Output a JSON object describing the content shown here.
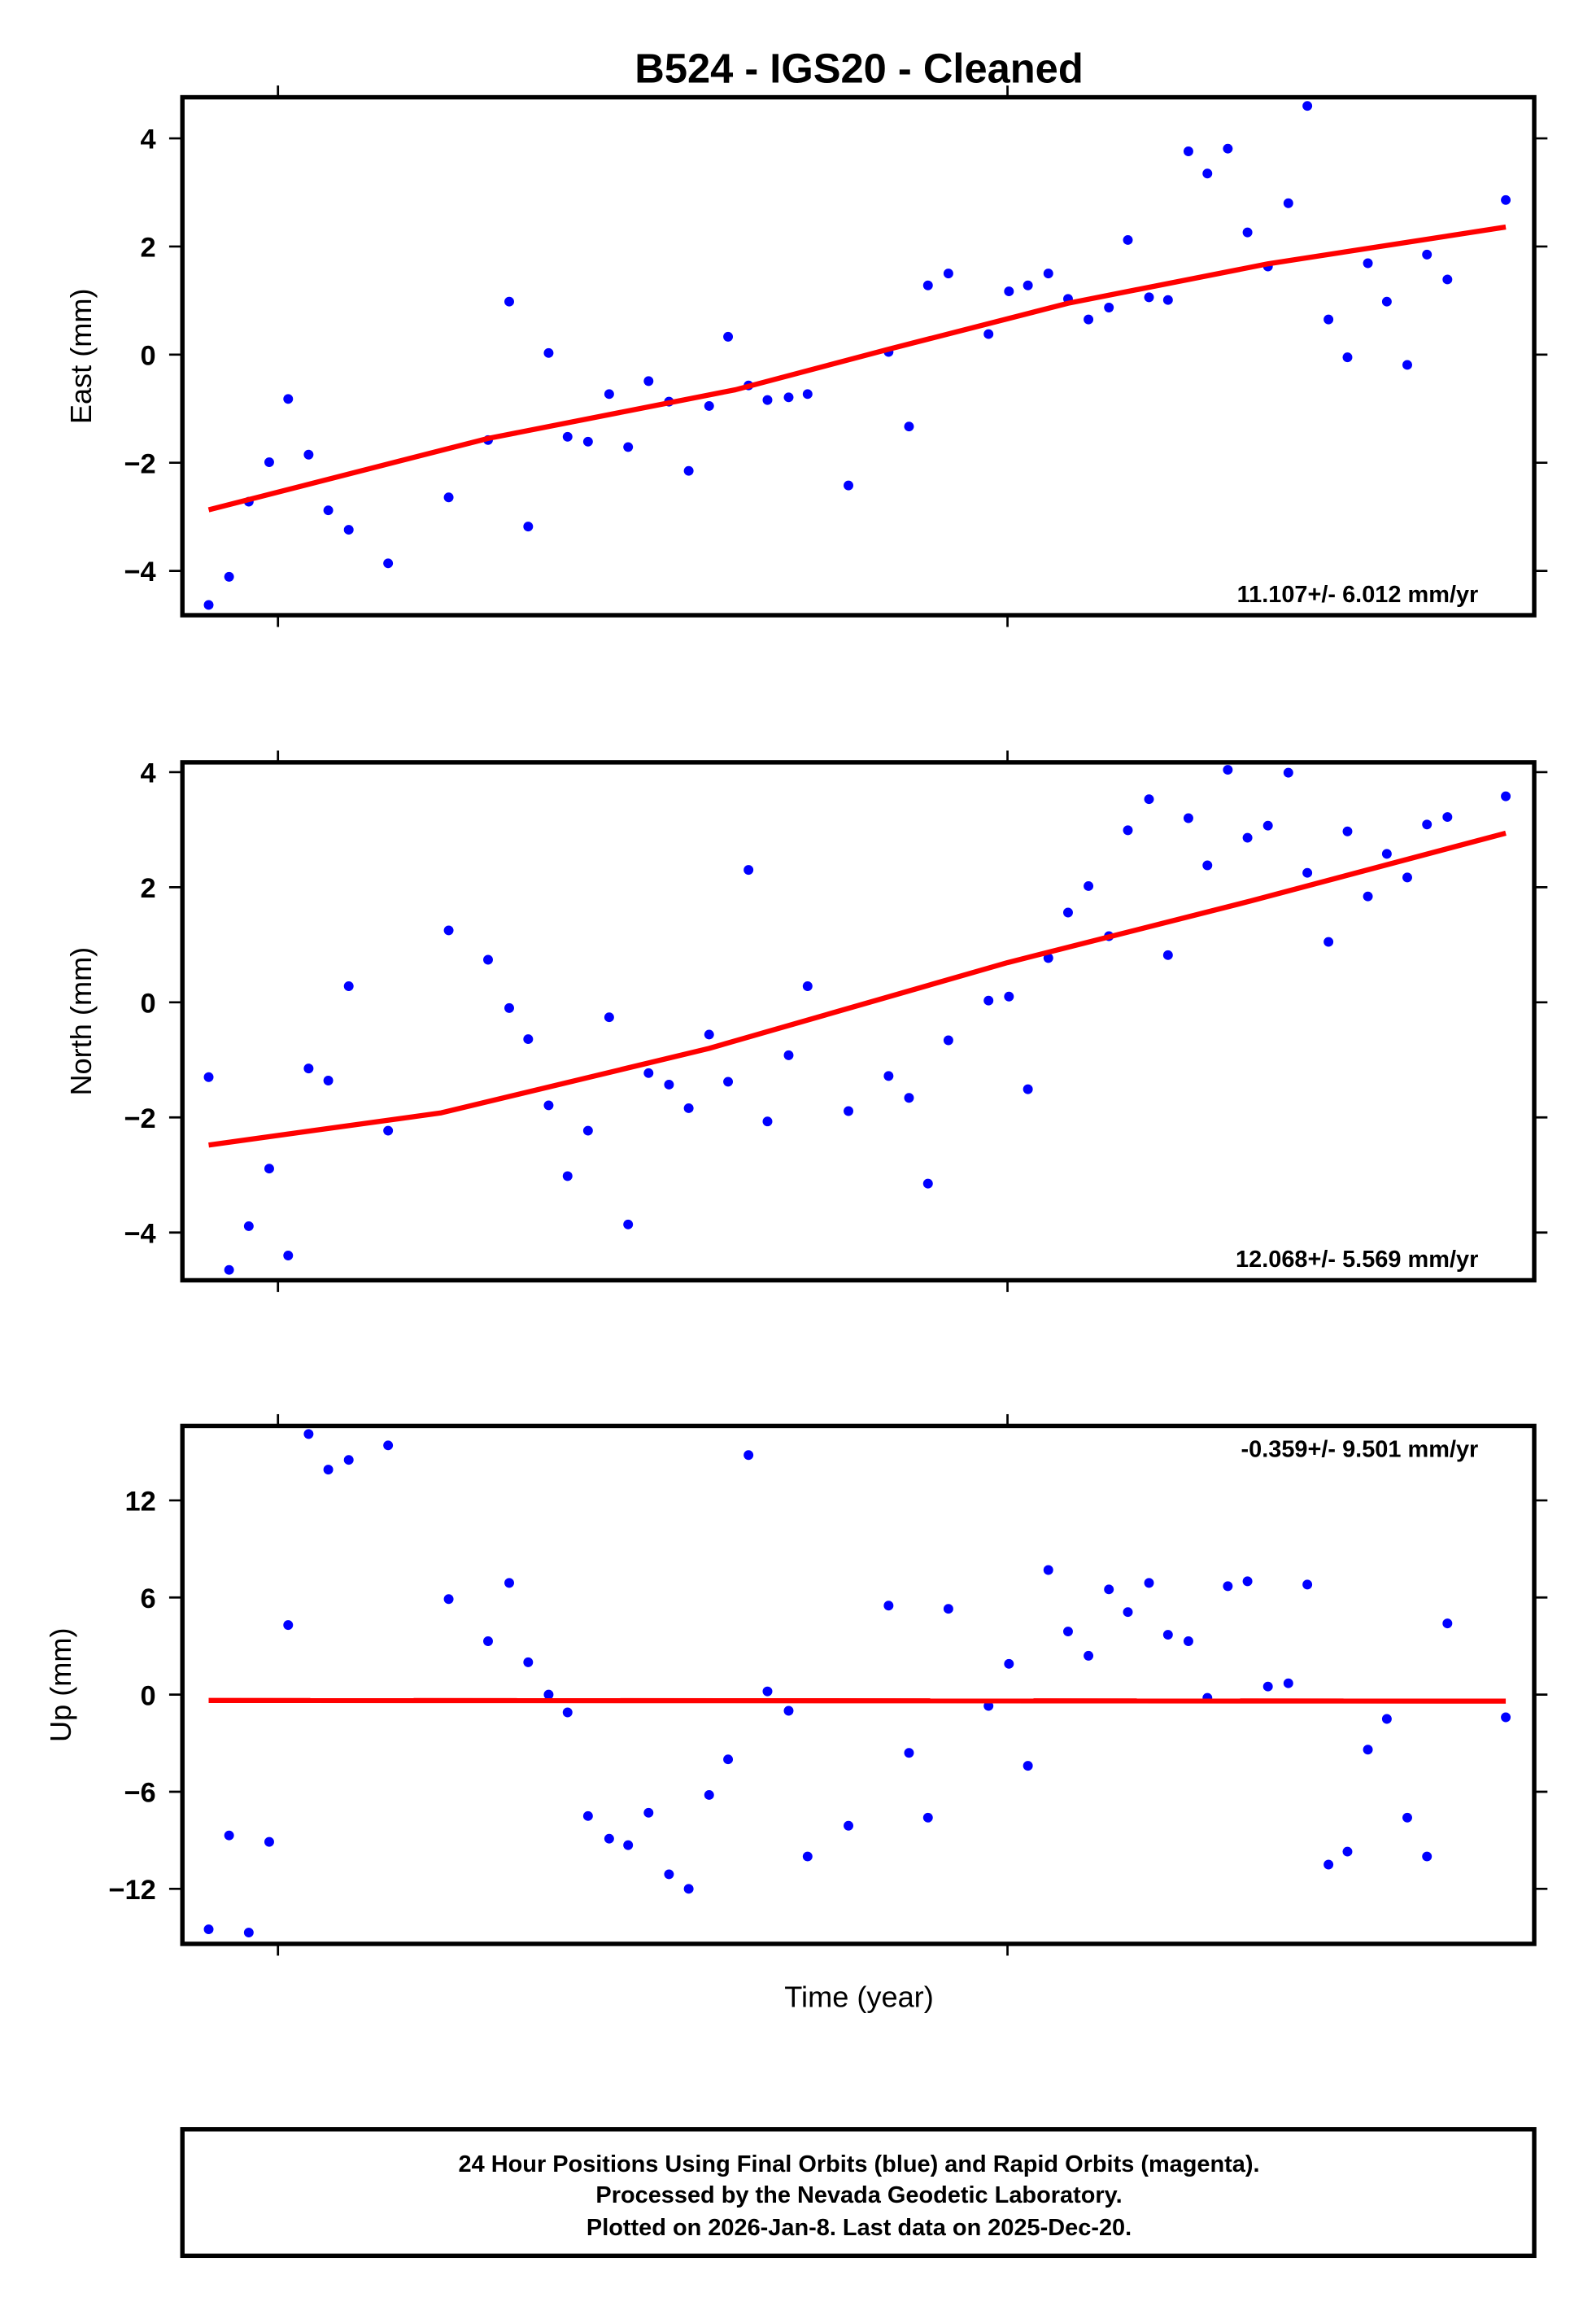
{
  "chart_data": {
    "type": "scatter",
    "title": "B524  - IGS20 - Cleaned",
    "xlabel": "Time (year)",
    "xlim": [
      2023.869,
      2025.722
    ],
    "xticks": [
      2024,
      2025
    ],
    "colors": {
      "points": "#0000ff",
      "trend": "#ff0000"
    },
    "x": [
      2023.905,
      2023.933,
      2023.96,
      2023.988,
      2024.014,
      2024.042,
      2024.069,
      2024.097,
      2024.151,
      2024.234,
      2024.288,
      2024.317,
      2024.343,
      2024.371,
      2024.397,
      2024.425,
      2024.454,
      2024.48,
      2024.508,
      2024.536,
      2024.563,
      2024.591,
      2024.617,
      2024.645,
      2024.671,
      2024.7,
      2024.726,
      2024.782,
      2024.837,
      2024.865,
      2024.891,
      2024.919,
      2024.974,
      2025.002,
      2025.028,
      2025.056,
      2025.083,
      2025.111,
      2025.139,
      2025.165,
      2025.194,
      2025.22,
      2025.248,
      2025.274,
      2025.302,
      2025.329,
      2025.357,
      2025.385,
      2025.411,
      2025.44,
      2025.466,
      2025.494,
      2025.52,
      2025.548,
      2025.575,
      2025.603,
      2025.683
    ],
    "panels": [
      {
        "name": "east",
        "ylabel": "East (mm)",
        "ylim": [
          -4.82,
          4.76
        ],
        "yticks": [
          -4,
          -2,
          0,
          2,
          4
        ],
        "ytick_labels": [
          "−4",
          "−2",
          "0",
          "2",
          "4"
        ],
        "rate_label": "11.107+/- 6.012 mm/yr",
        "rate_position": "bottom-right",
        "values": [
          -4.63,
          -4.11,
          -2.72,
          -1.99,
          -0.82,
          -1.85,
          -2.88,
          -3.24,
          -3.86,
          -2.64,
          -1.58,
          0.98,
          -3.18,
          0.03,
          -1.52,
          -1.61,
          -0.73,
          -1.71,
          -0.49,
          -0.87,
          -2.15,
          -0.95,
          0.33,
          -0.57,
          -0.84,
          -0.79,
          -0.73,
          -2.42,
          0.05,
          -1.33,
          1.28,
          1.5,
          0.38,
          1.17,
          1.28,
          1.5,
          1.03,
          0.65,
          0.87,
          2.12,
          1.06,
          1.01,
          3.76,
          3.35,
          3.81,
          2.26,
          1.63,
          2.8,
          4.6,
          0.65,
          -0.05,
          1.69,
          0.98,
          -0.19,
          1.85,
          1.39,
          2.86
        ],
        "trend": {
          "x": [
            2023.905,
            2024.288,
            2024.627,
            2024.837,
            2025.083,
            2025.357,
            2025.683
          ],
          "y": [
            -2.87,
            -1.55,
            -0.65,
            0.1,
            0.95,
            1.68,
            2.36
          ]
        }
      },
      {
        "name": "north",
        "ylabel": "North (mm)",
        "ylim": [
          -4.83,
          4.17
        ],
        "yticks": [
          -4,
          -2,
          0,
          2,
          4
        ],
        "ytick_labels": [
          "−4",
          "−2",
          "0",
          "2",
          "4"
        ],
        "rate_label": "12.068+/- 5.569 mm/yr",
        "rate_position": "bottom-right",
        "values": [
          -1.3,
          -4.65,
          -3.89,
          -2.89,
          -4.4,
          -1.15,
          -1.36,
          0.28,
          -2.23,
          1.25,
          0.74,
          -0.1,
          -0.64,
          -1.79,
          -3.02,
          -2.23,
          -0.26,
          -3.86,
          -1.23,
          -1.43,
          -1.84,
          -0.56,
          -1.38,
          2.3,
          -2.07,
          -0.92,
          0.28,
          -1.89,
          -1.28,
          -1.66,
          -3.15,
          -0.66,
          0.03,
          0.1,
          -1.51,
          0.77,
          1.56,
          2.02,
          1.15,
          2.99,
          3.53,
          0.82,
          3.2,
          2.38,
          4.04,
          2.86,
          3.07,
          3.99,
          2.25,
          1.05,
          2.97,
          1.84,
          2.58,
          2.17,
          3.09,
          3.22,
          3.58
        ],
        "trend": {
          "x": [
            2023.905,
            2024.224,
            2024.591,
            2025.0,
            2025.333,
            2025.683
          ],
          "y": [
            -2.48,
            -1.92,
            -0.8,
            0.69,
            1.76,
            2.94
          ]
        }
      },
      {
        "name": "up",
        "ylabel": "Up (mm)",
        "ylim": [
          -15.4,
          16.6
        ],
        "yticks": [
          -12,
          -6,
          0,
          6,
          12
        ],
        "ytick_labels": [
          "−12",
          "−6",
          "0",
          "6",
          "12"
        ],
        "rate_label": "-0.359+/- 9.501 mm/yr",
        "rate_position": "top-right",
        "values": [
          -14.5,
          -8.7,
          -14.7,
          -9.1,
          4.3,
          16.1,
          13.9,
          14.5,
          15.4,
          5.9,
          3.3,
          6.9,
          2.0,
          0.0,
          -1.1,
          -7.5,
          -8.9,
          -9.3,
          -7.3,
          -11.1,
          -12.0,
          -6.2,
          -4.0,
          14.8,
          0.2,
          -1.0,
          -10.0,
          -8.1,
          5.5,
          -3.6,
          -7.6,
          5.3,
          -0.7,
          1.9,
          -4.4,
          7.7,
          3.9,
          2.4,
          6.5,
          5.1,
          6.9,
          3.7,
          3.3,
          -0.2,
          6.7,
          7.0,
          0.5,
          0.7,
          6.8,
          -10.5,
          -9.7,
          -3.4,
          -1.5,
          -7.6,
          -10.0,
          4.4,
          -1.4
        ],
        "trend": {
          "x": [
            2023.905,
            2025.683
          ],
          "y": [
            -0.36,
            -0.4
          ]
        }
      }
    ]
  },
  "footer": {
    "line1": "24 Hour Positions Using Final Orbits (blue) and Rapid Orbits (magenta).",
    "line2": "Processed by the Nevada Geodetic Laboratory.",
    "line3": "Plotted on 2026-Jan-8. Last data on 2025-Dec-20."
  }
}
